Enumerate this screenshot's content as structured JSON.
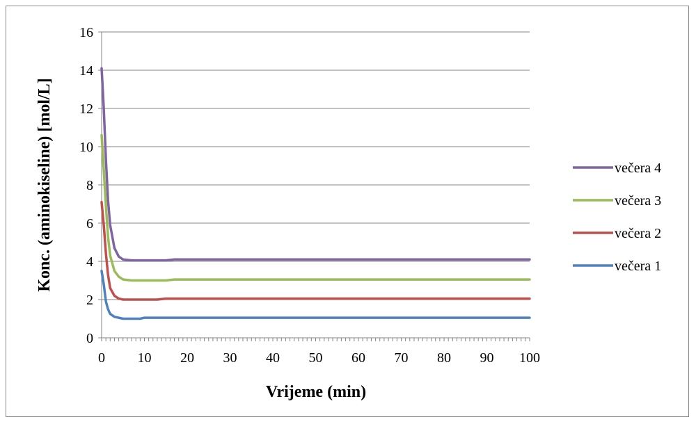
{
  "chart_data": {
    "type": "line",
    "title": "",
    "xlabel": "Vrijeme (min)",
    "ylabel": "Konc. (aminokiseline)  [mol/L]",
    "xlim": [
      0,
      100
    ],
    "ylim": [
      0,
      16
    ],
    "x_ticks": [
      0,
      10,
      20,
      30,
      40,
      50,
      60,
      70,
      80,
      90,
      100
    ],
    "y_ticks": [
      0,
      2,
      4,
      6,
      8,
      10,
      12,
      14,
      16
    ],
    "x_tick_labels": [
      "0",
      "10",
      "20",
      "30",
      "40",
      "50",
      "60",
      "70",
      "80",
      "90",
      "100"
    ],
    "y_tick_labels": [
      "0",
      "2",
      "4",
      "6",
      "8",
      "10",
      "12",
      "14",
      "16"
    ],
    "grid": "horizontal",
    "legend_position": "right",
    "series": [
      {
        "name": "večera 4",
        "color": "#8064A2",
        "x": [
          0,
          0.5,
          1,
          1.5,
          2,
          3,
          4,
          5,
          7,
          10,
          15,
          17,
          20,
          30,
          40,
          50,
          60,
          70,
          80,
          90,
          100
        ],
        "y": [
          14.1,
          12.0,
          9.3,
          7.2,
          5.9,
          4.7,
          4.25,
          4.1,
          4.05,
          4.05,
          4.05,
          4.1,
          4.1,
          4.1,
          4.1,
          4.1,
          4.1,
          4.1,
          4.1,
          4.1,
          4.1
        ]
      },
      {
        "name": "večera 3",
        "color": "#9BBB59",
        "x": [
          0,
          0.5,
          1,
          1.5,
          2,
          3,
          4,
          5,
          7,
          10,
          15,
          17,
          20,
          30,
          40,
          50,
          60,
          70,
          80,
          90,
          100
        ],
        "y": [
          10.6,
          8.8,
          6.9,
          5.3,
          4.3,
          3.5,
          3.2,
          3.05,
          3.0,
          3.0,
          3.0,
          3.05,
          3.05,
          3.05,
          3.05,
          3.05,
          3.05,
          3.05,
          3.05,
          3.05,
          3.05
        ]
      },
      {
        "name": "večera 2",
        "color": "#C0504D",
        "x": [
          0,
          0.5,
          1,
          1.5,
          2,
          3,
          4,
          5,
          7,
          10,
          13,
          15,
          20,
          30,
          40,
          50,
          60,
          70,
          80,
          90,
          100
        ],
        "y": [
          7.1,
          5.9,
          4.4,
          3.3,
          2.6,
          2.2,
          2.05,
          2.0,
          2.0,
          2.0,
          2.0,
          2.05,
          2.05,
          2.05,
          2.05,
          2.05,
          2.05,
          2.05,
          2.05,
          2.05,
          2.05
        ]
      },
      {
        "name": "večera 1",
        "color": "#4F81BD",
        "x": [
          0,
          0.5,
          1,
          1.5,
          2,
          3,
          4,
          5,
          7,
          9,
          10,
          15,
          20,
          30,
          40,
          50,
          60,
          70,
          80,
          90,
          100
        ],
        "y": [
          3.5,
          2.8,
          1.9,
          1.5,
          1.25,
          1.1,
          1.05,
          1.0,
          1.0,
          1.0,
          1.05,
          1.05,
          1.05,
          1.05,
          1.05,
          1.05,
          1.05,
          1.05,
          1.05,
          1.05,
          1.05
        ]
      }
    ]
  }
}
